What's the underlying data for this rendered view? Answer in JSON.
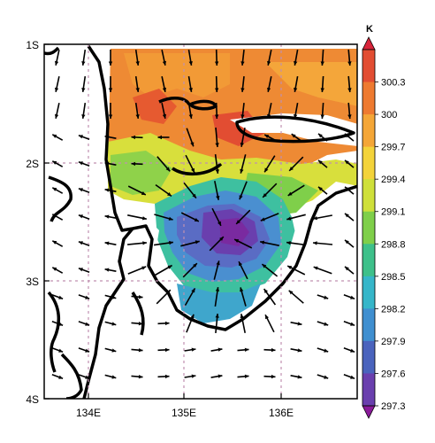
{
  "map": {
    "lat_labels": [
      "1S",
      "2S",
      "3S",
      "4S"
    ],
    "lon_labels": [
      "134E",
      "135E",
      "136E"
    ],
    "colorbar": {
      "unit": "K",
      "ticks": [
        "300.3",
        "300",
        "299.7",
        "299.4",
        "299.1",
        "298.8",
        "298.5",
        "298.2",
        "297.9",
        "297.6",
        "297.3"
      ],
      "colors": [
        "#8a1a9a",
        "#6a3fae",
        "#4a63bd",
        "#3f8fd0",
        "#36b6c9",
        "#3ec08a",
        "#7fcf4a",
        "#cfe03a",
        "#f3d33a",
        "#f4a637",
        "#ee7a30",
        "#e24d32",
        "#d8243a"
      ]
    },
    "colors": {
      "coast": "#000000",
      "grid": "#c090b0",
      "arrow": "#000000"
    }
  }
}
